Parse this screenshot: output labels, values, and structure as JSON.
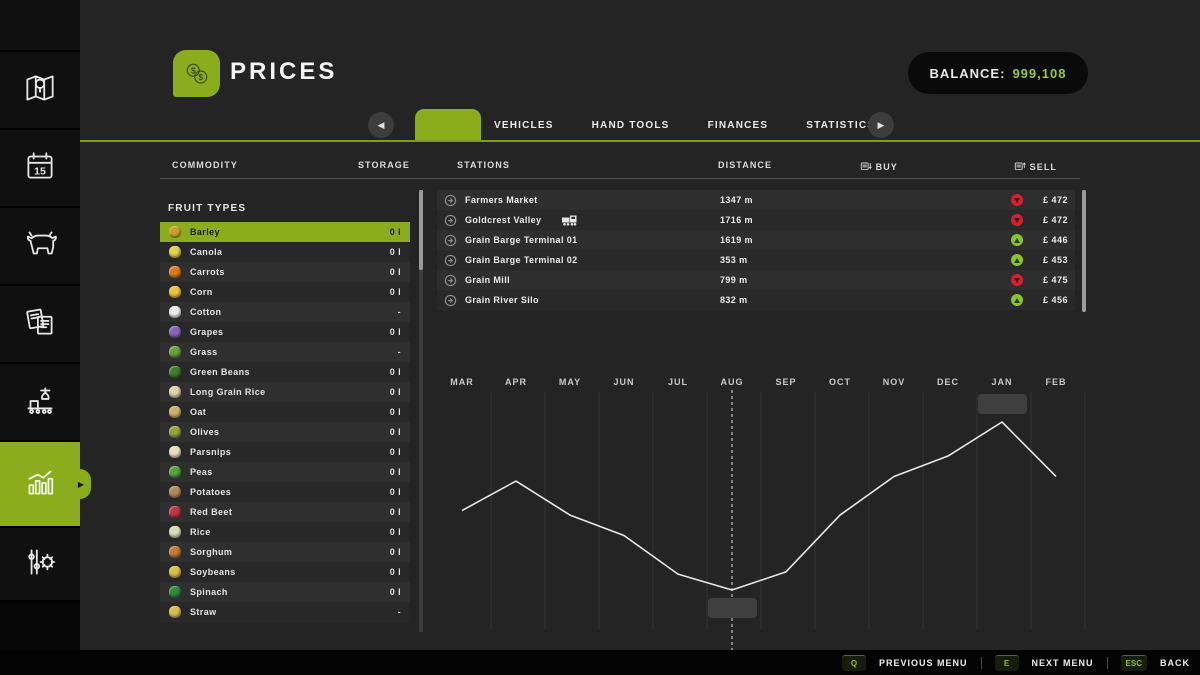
{
  "header": {
    "title": "PRICES",
    "balance_label": "BALANCE:",
    "balance_value": "999,108"
  },
  "tabs": {
    "active_label": "",
    "items": [
      "VEHICLES",
      "HAND TOOLS",
      "FINANCES",
      "STATISTICS"
    ]
  },
  "columns": {
    "commodity": "COMMODITY",
    "storage": "STORAGE",
    "stations": "STATIONS",
    "distance": "DISTANCE",
    "buy": "BUY",
    "sell": "SELL"
  },
  "fruit_panel": {
    "title": "FRUIT TYPES",
    "items": [
      {
        "name": "Barley",
        "storage": "0 l",
        "icon": "barley-icon",
        "color": "#c9a227",
        "selected": true
      },
      {
        "name": "Canola",
        "storage": "0 l",
        "icon": "canola-icon",
        "color": "#e3d24b",
        "selected": false
      },
      {
        "name": "Carrots",
        "storage": "0 l",
        "icon": "carrot-icon",
        "color": "#e07a1f",
        "selected": false
      },
      {
        "name": "Corn",
        "storage": "0 l",
        "icon": "corn-icon",
        "color": "#eac23e",
        "selected": false
      },
      {
        "name": "Cotton",
        "storage": "-",
        "icon": "cotton-icon",
        "color": "#ececec",
        "selected": false
      },
      {
        "name": "Grapes",
        "storage": "0 l",
        "icon": "grapes-icon",
        "color": "#8a63b8",
        "selected": false
      },
      {
        "name": "Grass",
        "storage": "-",
        "icon": "grass-icon",
        "color": "#67a03c",
        "selected": false
      },
      {
        "name": "Green Beans",
        "storage": "0 l",
        "icon": "greenbean-icon",
        "color": "#3f7d2c",
        "selected": false
      },
      {
        "name": "Long Grain Rice",
        "storage": "0 l",
        "icon": "rice-icon",
        "color": "#ded3a4",
        "selected": false
      },
      {
        "name": "Oat",
        "storage": "0 l",
        "icon": "oat-icon",
        "color": "#cdb06a",
        "selected": false
      },
      {
        "name": "Olives",
        "storage": "0 l",
        "icon": "olive-icon",
        "color": "#93a23b",
        "selected": false
      },
      {
        "name": "Parsnips",
        "storage": "0 l",
        "icon": "parsnip-icon",
        "color": "#eadfc0",
        "selected": false
      },
      {
        "name": "Peas",
        "storage": "0 l",
        "icon": "peas-icon",
        "color": "#5aa13f",
        "selected": false
      },
      {
        "name": "Potatoes",
        "storage": "0 l",
        "icon": "potato-icon",
        "color": "#b3895a",
        "selected": false
      },
      {
        "name": "Red Beet",
        "storage": "0 l",
        "icon": "redbeet-icon",
        "color": "#c33344",
        "selected": false
      },
      {
        "name": "Rice",
        "storage": "0 l",
        "icon": "rice-icon",
        "color": "#d9dcb8",
        "selected": false
      },
      {
        "name": "Sorghum",
        "storage": "0 l",
        "icon": "sorghum-icon",
        "color": "#c07b35",
        "selected": false
      },
      {
        "name": "Soybeans",
        "storage": "0 l",
        "icon": "soybean-icon",
        "color": "#d9c046",
        "selected": false
      },
      {
        "name": "Spinach",
        "storage": "0 l",
        "icon": "spinach-icon",
        "color": "#2f8a3a",
        "selected": false
      },
      {
        "name": "Straw",
        "storage": "-",
        "icon": "straw-icon",
        "color": "#d7bd52",
        "selected": false
      }
    ]
  },
  "stations": {
    "currency": "£",
    "rows": [
      {
        "name": "Farmers Market",
        "train": false,
        "distance": "1347 m",
        "trend": "down",
        "price": "472"
      },
      {
        "name": "Goldcrest Valley",
        "train": true,
        "distance": "1716 m",
        "trend": "down",
        "price": "472"
      },
      {
        "name": "Grain Barge Terminal 01",
        "train": false,
        "distance": "1619 m",
        "trend": "up",
        "price": "446"
      },
      {
        "name": "Grain Barge Terminal 02",
        "train": false,
        "distance": "353 m",
        "trend": "up",
        "price": "453"
      },
      {
        "name": "Grain Mill",
        "train": false,
        "distance": "799 m",
        "trend": "down",
        "price": "475"
      },
      {
        "name": "Grain River Silo",
        "train": false,
        "distance": "832 m",
        "trend": "up",
        "price": "456"
      }
    ]
  },
  "chart_data": {
    "type": "line",
    "title": "",
    "x_labels": [
      "MAR",
      "APR",
      "MAY",
      "JUN",
      "JUL",
      "AUG",
      "SEP",
      "OCT",
      "NOV",
      "DEC",
      "JAN",
      "FEB"
    ],
    "series": [
      {
        "name": "price-trend-relative",
        "values": [
          61,
          74,
          59,
          50,
          33,
          26,
          34,
          59,
          76,
          85,
          100,
          76
        ]
      }
    ],
    "ylabel": "",
    "xlabel": "",
    "axis_note": "no numeric y-axis ticks visible in UI; values are relative 0-100 read from line height",
    "current_month_marker": "AUG",
    "tooltips": [
      {
        "month": "JAN",
        "position": "above",
        "label": ""
      },
      {
        "month": "AUG",
        "position": "below",
        "label": ""
      }
    ],
    "line_color": "#e8e8e8",
    "grid": true,
    "legend": false
  },
  "sidebar": {
    "items": [
      {
        "icon": "map-icon",
        "active": false
      },
      {
        "icon": "calendar-icon",
        "active": false,
        "day": "15"
      },
      {
        "icon": "animals-icon",
        "active": false
      },
      {
        "icon": "contracts-icon",
        "active": false
      },
      {
        "icon": "production-icon",
        "active": false
      },
      {
        "icon": "statistics-icon",
        "active": true
      },
      {
        "icon": "settings-icon",
        "active": false
      }
    ]
  },
  "footer": {
    "keys": [
      {
        "key": "Q",
        "label": "PREVIOUS MENU"
      },
      {
        "key": "E",
        "label": "NEXT MENU"
      },
      {
        "key": "ESC",
        "label": "BACK"
      }
    ]
  },
  "colors": {
    "accent_green": "#8bad1d",
    "balance_green": "#9ccd2a",
    "trend_down_red": "#d5212e",
    "trend_up_green": "#8bc32a",
    "background": "#242424",
    "sidebar_bg": "#060606"
  }
}
